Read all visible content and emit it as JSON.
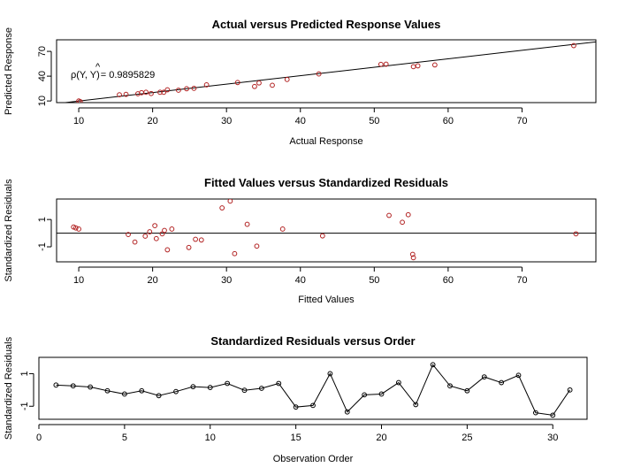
{
  "colors": {
    "points_panels_1_2": "#b22222",
    "points_panel_3": "#000000",
    "lines": "#000000"
  },
  "chart_data": [
    {
      "type": "scatter",
      "title": "Actual versus Predicted Response Values",
      "xlabel": "Actual Response",
      "ylabel": "Predicted Response",
      "xlim": [
        7,
        80
      ],
      "ylim": [
        8,
        84
      ],
      "xticks": [
        10,
        20,
        30,
        40,
        50,
        60,
        70
      ],
      "yticks": [
        10,
        40,
        70
      ],
      "annotation": "= 0.9895829",
      "reference_line": {
        "from": [
          7,
          6.8
        ],
        "to": [
          80,
          81.5
        ]
      },
      "points": [
        {
          "x": 10.0,
          "y": 10.0
        },
        {
          "x": 10.2,
          "y": 9.2
        },
        {
          "x": 15.5,
          "y": 17.5
        },
        {
          "x": 16.4,
          "y": 18.0
        },
        {
          "x": 18.0,
          "y": 18.7
        },
        {
          "x": 18.5,
          "y": 20.0
        },
        {
          "x": 19.1,
          "y": 20.5
        },
        {
          "x": 19.8,
          "y": 19.0
        },
        {
          "x": 21.0,
          "y": 20.5
        },
        {
          "x": 21.5,
          "y": 20.5
        },
        {
          "x": 22.0,
          "y": 23.5
        },
        {
          "x": 23.5,
          "y": 23.0
        },
        {
          "x": 24.6,
          "y": 24.8
        },
        {
          "x": 25.6,
          "y": 25.3
        },
        {
          "x": 27.3,
          "y": 29.5
        },
        {
          "x": 31.5,
          "y": 32.3
        },
        {
          "x": 33.8,
          "y": 27.5
        },
        {
          "x": 34.4,
          "y": 31.8
        },
        {
          "x": 36.2,
          "y": 29.0
        },
        {
          "x": 38.2,
          "y": 36.0
        },
        {
          "x": 42.5,
          "y": 42.7
        },
        {
          "x": 50.9,
          "y": 54.3
        },
        {
          "x": 51.6,
          "y": 54.5
        },
        {
          "x": 55.3,
          "y": 51.5
        },
        {
          "x": 55.9,
          "y": 52.5
        },
        {
          "x": 58.2,
          "y": 53.6
        },
        {
          "x": 77.0,
          "y": 77.0
        }
      ]
    },
    {
      "type": "scatter",
      "title": "Fitted Values versus Standardized Residuals",
      "xlabel": "Fitted Values",
      "ylabel": "Standardized Residuals",
      "xlim": [
        7,
        80
      ],
      "ylim": [
        -2.1,
        2.5
      ],
      "xticks": [
        10,
        20,
        30,
        40,
        50,
        60,
        70
      ],
      "yticks": [
        -1,
        1
      ],
      "reference_line_y": 0,
      "points": [
        {
          "x": 9.3,
          "y": 0.45
        },
        {
          "x": 9.6,
          "y": 0.38
        },
        {
          "x": 10.0,
          "y": 0.3
        },
        {
          "x": 16.7,
          "y": -0.1
        },
        {
          "x": 17.6,
          "y": -0.65
        },
        {
          "x": 19.0,
          "y": -0.22
        },
        {
          "x": 19.6,
          "y": 0.1
        },
        {
          "x": 20.3,
          "y": 0.55
        },
        {
          "x": 20.5,
          "y": -0.4
        },
        {
          "x": 21.3,
          "y": -0.05
        },
        {
          "x": 21.6,
          "y": 0.2
        },
        {
          "x": 22.0,
          "y": -1.22
        },
        {
          "x": 22.6,
          "y": 0.3
        },
        {
          "x": 24.9,
          "y": -1.05
        },
        {
          "x": 25.8,
          "y": -0.45
        },
        {
          "x": 26.6,
          "y": -0.5
        },
        {
          "x": 29.4,
          "y": 1.85
        },
        {
          "x": 30.5,
          "y": 2.35
        },
        {
          "x": 31.1,
          "y": -1.5
        },
        {
          "x": 32.8,
          "y": 0.65
        },
        {
          "x": 34.1,
          "y": -0.95
        },
        {
          "x": 37.6,
          "y": 0.3
        },
        {
          "x": 43.0,
          "y": -0.2
        },
        {
          "x": 52.0,
          "y": 1.3
        },
        {
          "x": 53.8,
          "y": 0.8
        },
        {
          "x": 54.6,
          "y": 1.35
        },
        {
          "x": 55.2,
          "y": -1.55
        },
        {
          "x": 55.3,
          "y": -1.8
        },
        {
          "x": 77.3,
          "y": -0.05
        }
      ]
    },
    {
      "type": "line",
      "title": "Standardized Residuals versus Order",
      "xlabel": "Observation Order",
      "ylabel": "Standardized Residuals",
      "xlim": [
        0,
        32
      ],
      "ylim": [
        -1.8,
        2.0
      ],
      "xticks": [
        0,
        5,
        10,
        15,
        20,
        25,
        30
      ],
      "yticks": [
        -1,
        1
      ],
      "x": [
        1,
        2,
        3,
        4,
        5,
        6,
        7,
        8,
        9,
        10,
        11,
        12,
        13,
        14,
        15,
        16,
        17,
        18,
        19,
        20,
        21,
        22,
        23,
        24,
        25,
        26,
        27,
        28,
        29,
        30,
        31
      ],
      "y": [
        0.3,
        0.25,
        0.18,
        -0.05,
        -0.25,
        -0.05,
        -0.35,
        -0.1,
        0.2,
        0.15,
        0.4,
        -0.02,
        0.1,
        0.4,
        -1.05,
        -0.95,
        1.0,
        -1.35,
        -0.3,
        -0.25,
        0.45,
        -0.9,
        1.55,
        0.25,
        -0.05,
        0.8,
        0.45,
        0.9,
        -1.4,
        -1.55,
        0.0
      ]
    }
  ]
}
